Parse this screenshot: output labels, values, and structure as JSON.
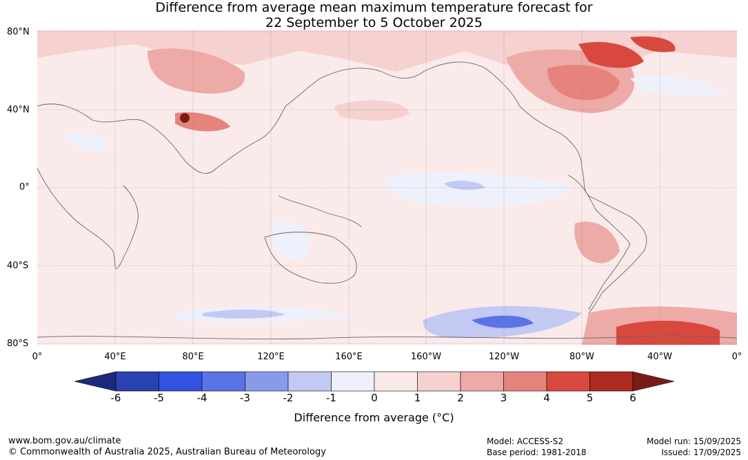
{
  "title": {
    "line1": "Difference from average mean maximum temperature forecast for",
    "line2": "22 September to 5 October 2025"
  },
  "lat_labels": [
    "80°N",
    "40°N",
    "0°",
    "40°S",
    "80°S"
  ],
  "lon_labels": [
    "0°",
    "40°E",
    "80°E",
    "120°E",
    "160°E",
    "160°W",
    "120°W",
    "80°W",
    "40°W",
    "0°"
  ],
  "colorbar": {
    "ticks": [
      "-6",
      "-5",
      "-4",
      "-3",
      "-2",
      "-1",
      "0",
      "1",
      "2",
      "3",
      "4",
      "5",
      "6"
    ],
    "colors": [
      "#1b2a7c",
      "#2a42b0",
      "#3452e0",
      "#5a74e6",
      "#8a9aea",
      "#c2c9f2",
      "#eef0fb",
      "#fbeaea",
      "#f5d1cf",
      "#edaaa6",
      "#e6837d",
      "#d9483e",
      "#ad2a22",
      "#7a1c16"
    ],
    "label": "Difference from average (°C)"
  },
  "footer": {
    "url": "www.bom.gov.au/climate",
    "copyright": "© Commonwealth of Australia 2025, Australian Bureau of Meteorology",
    "model": "Model: ACCESS-S2",
    "base_period": "Base period: 1981-2018",
    "model_run": "Model run: 15/09/2025",
    "issued": "Issued: 17/09/2025"
  }
}
